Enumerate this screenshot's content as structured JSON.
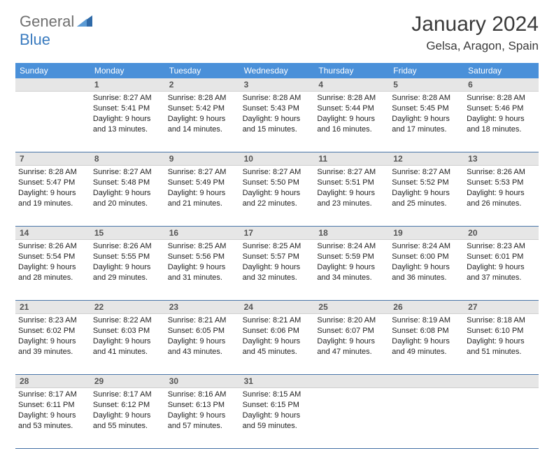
{
  "logo": {
    "text1": "General",
    "text2": "Blue"
  },
  "title": "January 2024",
  "location": "Gelsa, Aragon, Spain",
  "colors": {
    "header_bg": "#4a90d9",
    "header_text": "#ffffff",
    "daynum_bg": "#e6e6e6",
    "week_border": "#4a76a8",
    "logo_gray": "#707070",
    "logo_blue": "#3a7bbf"
  },
  "weekdays": [
    "Sunday",
    "Monday",
    "Tuesday",
    "Wednesday",
    "Thursday",
    "Friday",
    "Saturday"
  ],
  "weeks": [
    {
      "nums": [
        "",
        "1",
        "2",
        "3",
        "4",
        "5",
        "6"
      ],
      "cells": [
        null,
        {
          "sr": "Sunrise: 8:27 AM",
          "ss": "Sunset: 5:41 PM",
          "d1": "Daylight: 9 hours",
          "d2": "and 13 minutes."
        },
        {
          "sr": "Sunrise: 8:28 AM",
          "ss": "Sunset: 5:42 PM",
          "d1": "Daylight: 9 hours",
          "d2": "and 14 minutes."
        },
        {
          "sr": "Sunrise: 8:28 AM",
          "ss": "Sunset: 5:43 PM",
          "d1": "Daylight: 9 hours",
          "d2": "and 15 minutes."
        },
        {
          "sr": "Sunrise: 8:28 AM",
          "ss": "Sunset: 5:44 PM",
          "d1": "Daylight: 9 hours",
          "d2": "and 16 minutes."
        },
        {
          "sr": "Sunrise: 8:28 AM",
          "ss": "Sunset: 5:45 PM",
          "d1": "Daylight: 9 hours",
          "d2": "and 17 minutes."
        },
        {
          "sr": "Sunrise: 8:28 AM",
          "ss": "Sunset: 5:46 PM",
          "d1": "Daylight: 9 hours",
          "d2": "and 18 minutes."
        }
      ]
    },
    {
      "nums": [
        "7",
        "8",
        "9",
        "10",
        "11",
        "12",
        "13"
      ],
      "cells": [
        {
          "sr": "Sunrise: 8:28 AM",
          "ss": "Sunset: 5:47 PM",
          "d1": "Daylight: 9 hours",
          "d2": "and 19 minutes."
        },
        {
          "sr": "Sunrise: 8:27 AM",
          "ss": "Sunset: 5:48 PM",
          "d1": "Daylight: 9 hours",
          "d2": "and 20 minutes."
        },
        {
          "sr": "Sunrise: 8:27 AM",
          "ss": "Sunset: 5:49 PM",
          "d1": "Daylight: 9 hours",
          "d2": "and 21 minutes."
        },
        {
          "sr": "Sunrise: 8:27 AM",
          "ss": "Sunset: 5:50 PM",
          "d1": "Daylight: 9 hours",
          "d2": "and 22 minutes."
        },
        {
          "sr": "Sunrise: 8:27 AM",
          "ss": "Sunset: 5:51 PM",
          "d1": "Daylight: 9 hours",
          "d2": "and 23 minutes."
        },
        {
          "sr": "Sunrise: 8:27 AM",
          "ss": "Sunset: 5:52 PM",
          "d1": "Daylight: 9 hours",
          "d2": "and 25 minutes."
        },
        {
          "sr": "Sunrise: 8:26 AM",
          "ss": "Sunset: 5:53 PM",
          "d1": "Daylight: 9 hours",
          "d2": "and 26 minutes."
        }
      ]
    },
    {
      "nums": [
        "14",
        "15",
        "16",
        "17",
        "18",
        "19",
        "20"
      ],
      "cells": [
        {
          "sr": "Sunrise: 8:26 AM",
          "ss": "Sunset: 5:54 PM",
          "d1": "Daylight: 9 hours",
          "d2": "and 28 minutes."
        },
        {
          "sr": "Sunrise: 8:26 AM",
          "ss": "Sunset: 5:55 PM",
          "d1": "Daylight: 9 hours",
          "d2": "and 29 minutes."
        },
        {
          "sr": "Sunrise: 8:25 AM",
          "ss": "Sunset: 5:56 PM",
          "d1": "Daylight: 9 hours",
          "d2": "and 31 minutes."
        },
        {
          "sr": "Sunrise: 8:25 AM",
          "ss": "Sunset: 5:57 PM",
          "d1": "Daylight: 9 hours",
          "d2": "and 32 minutes."
        },
        {
          "sr": "Sunrise: 8:24 AM",
          "ss": "Sunset: 5:59 PM",
          "d1": "Daylight: 9 hours",
          "d2": "and 34 minutes."
        },
        {
          "sr": "Sunrise: 8:24 AM",
          "ss": "Sunset: 6:00 PM",
          "d1": "Daylight: 9 hours",
          "d2": "and 36 minutes."
        },
        {
          "sr": "Sunrise: 8:23 AM",
          "ss": "Sunset: 6:01 PM",
          "d1": "Daylight: 9 hours",
          "d2": "and 37 minutes."
        }
      ]
    },
    {
      "nums": [
        "21",
        "22",
        "23",
        "24",
        "25",
        "26",
        "27"
      ],
      "cells": [
        {
          "sr": "Sunrise: 8:23 AM",
          "ss": "Sunset: 6:02 PM",
          "d1": "Daylight: 9 hours",
          "d2": "and 39 minutes."
        },
        {
          "sr": "Sunrise: 8:22 AM",
          "ss": "Sunset: 6:03 PM",
          "d1": "Daylight: 9 hours",
          "d2": "and 41 minutes."
        },
        {
          "sr": "Sunrise: 8:21 AM",
          "ss": "Sunset: 6:05 PM",
          "d1": "Daylight: 9 hours",
          "d2": "and 43 minutes."
        },
        {
          "sr": "Sunrise: 8:21 AM",
          "ss": "Sunset: 6:06 PM",
          "d1": "Daylight: 9 hours",
          "d2": "and 45 minutes."
        },
        {
          "sr": "Sunrise: 8:20 AM",
          "ss": "Sunset: 6:07 PM",
          "d1": "Daylight: 9 hours",
          "d2": "and 47 minutes."
        },
        {
          "sr": "Sunrise: 8:19 AM",
          "ss": "Sunset: 6:08 PM",
          "d1": "Daylight: 9 hours",
          "d2": "and 49 minutes."
        },
        {
          "sr": "Sunrise: 8:18 AM",
          "ss": "Sunset: 6:10 PM",
          "d1": "Daylight: 9 hours",
          "d2": "and 51 minutes."
        }
      ]
    },
    {
      "nums": [
        "28",
        "29",
        "30",
        "31",
        "",
        "",
        ""
      ],
      "cells": [
        {
          "sr": "Sunrise: 8:17 AM",
          "ss": "Sunset: 6:11 PM",
          "d1": "Daylight: 9 hours",
          "d2": "and 53 minutes."
        },
        {
          "sr": "Sunrise: 8:17 AM",
          "ss": "Sunset: 6:12 PM",
          "d1": "Daylight: 9 hours",
          "d2": "and 55 minutes."
        },
        {
          "sr": "Sunrise: 8:16 AM",
          "ss": "Sunset: 6:13 PM",
          "d1": "Daylight: 9 hours",
          "d2": "and 57 minutes."
        },
        {
          "sr": "Sunrise: 8:15 AM",
          "ss": "Sunset: 6:15 PM",
          "d1": "Daylight: 9 hours",
          "d2": "and 59 minutes."
        },
        null,
        null,
        null
      ]
    }
  ]
}
